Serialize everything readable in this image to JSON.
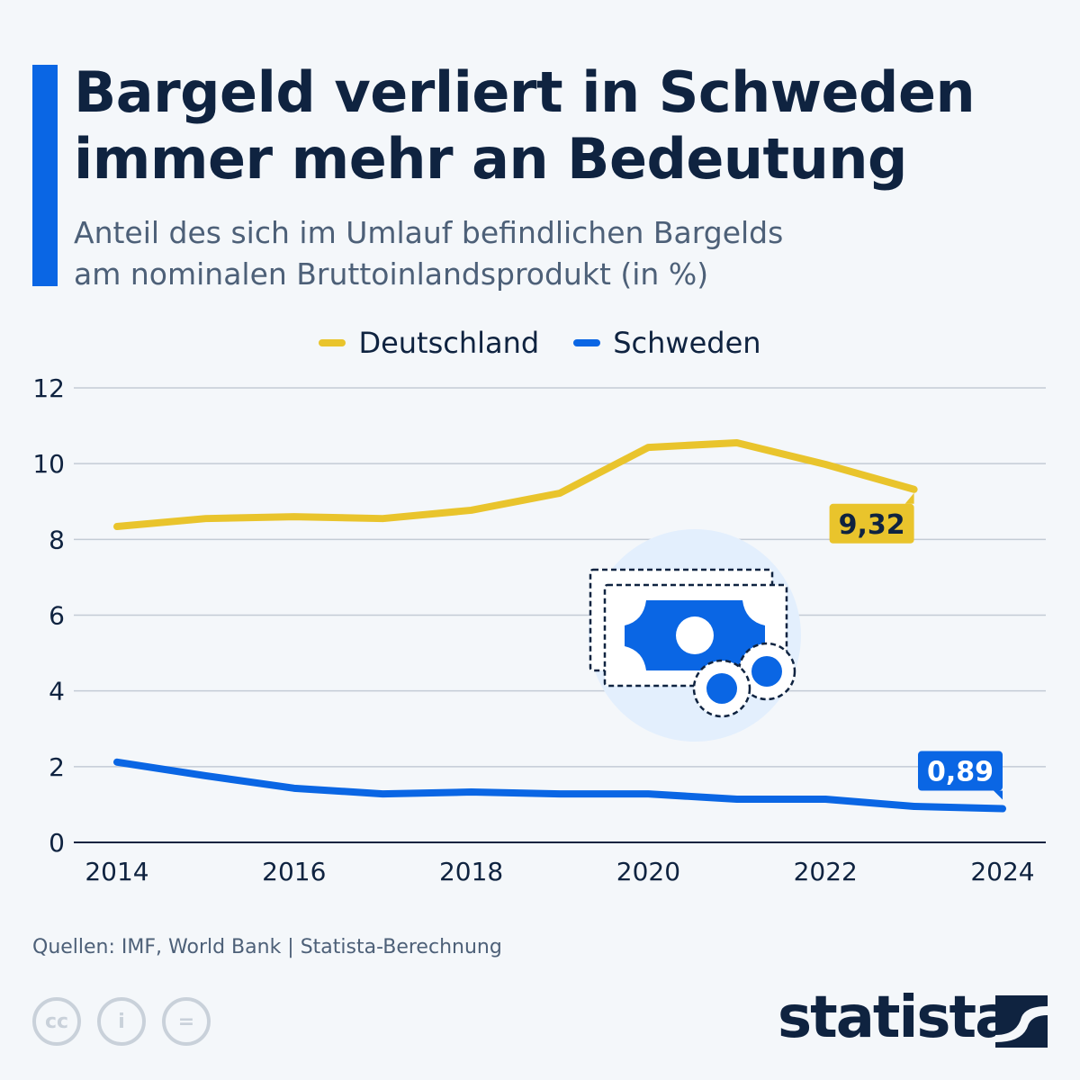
{
  "title": "Bargeld verliert in Schweden immer mehr an Bedeutung",
  "subtitle_line1": "Anteil des sich im Umlauf befindlichen Bargelds",
  "subtitle_line2": "am nominalen Bruttoinlandsprodukt (in %)",
  "source": "Quellen: IMF, World Bank | Statista-Berechnung",
  "logo_text": "statista",
  "license_icons": [
    "cc-icon",
    "attribution-icon",
    "no-derivatives-icon"
  ],
  "chart_data": {
    "type": "line",
    "title": "",
    "xlabel": "",
    "ylabel": "",
    "ylim": [
      0,
      12
    ],
    "yticks": [
      0,
      2,
      4,
      6,
      8,
      10,
      12
    ],
    "xticks": [
      2014,
      2016,
      2018,
      2020,
      2022,
      2024
    ],
    "xlim": [
      2014,
      2024
    ],
    "grid": true,
    "legend_placement": "top-center",
    "series": [
      {
        "name": "Deutschland",
        "color": "#e9c42c",
        "x": [
          2014,
          2015,
          2016,
          2017,
          2018,
          2019,
          2020,
          2021,
          2022,
          2023
        ],
        "values": [
          8.34,
          8.55,
          8.6,
          8.55,
          8.77,
          9.22,
          10.43,
          10.55,
          9.98,
          9.32
        ],
        "end_label": "9,32"
      },
      {
        "name": "Schweden",
        "color": "#0a66e4",
        "x": [
          2014,
          2015,
          2016,
          2017,
          2018,
          2019,
          2020,
          2021,
          2022,
          2023,
          2024
        ],
        "values": [
          2.12,
          1.76,
          1.43,
          1.28,
          1.33,
          1.28,
          1.28,
          1.14,
          1.14,
          0.95,
          0.89
        ],
        "end_label": "0,89"
      }
    ]
  }
}
